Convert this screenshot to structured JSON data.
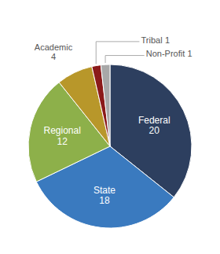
{
  "chart_data": {
    "type": "pie",
    "categories": [
      "Federal",
      "State",
      "Regional",
      "Academic",
      "Tribal",
      "Non-Profit"
    ],
    "values": [
      20,
      18,
      12,
      4,
      1,
      1
    ],
    "colors": [
      "#2d3f5f",
      "#3a7abf",
      "#8db04a",
      "#b8972a",
      "#8b1a1a",
      "#a8a8a8"
    ],
    "data_labels": true
  }
}
